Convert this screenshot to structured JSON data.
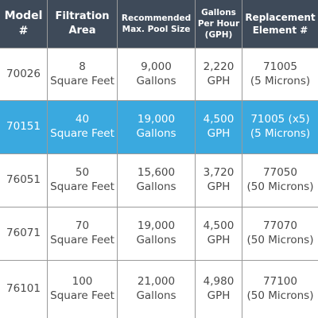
{
  "table": {
    "header": [
      "Model\n#",
      "Filtration\nArea",
      "Recommended\nMax. Pool Size",
      "Gallons\nPer Hour\n(GPH)",
      "Replacement\nElement #"
    ],
    "rows": [
      [
        "70026",
        "8\nSquare Feet",
        "9,000\nGallons",
        "2,220\nGPH",
        "71005\n(5 Microns)"
      ],
      [
        "70151",
        "40\nSquare Feet",
        "19,000\nGallons",
        "4,500\nGPH",
        "71005 (x5)\n(5 Microns)"
      ],
      [
        "76051",
        "50\nSquare Feet",
        "15,600\nGallons",
        "3,720\nGPH",
        "77050\n(50 Microns)"
      ],
      [
        "76071",
        "70\nSquare Feet",
        "19,000\nGallons",
        "4,500\nGPH",
        "77070\n(50 Microns)"
      ],
      [
        "76101",
        "100\nSquare Feet",
        "21,000\nGallons",
        "4,980\nGPH",
        "77100\n(50 Microns)"
      ]
    ]
  }
}
